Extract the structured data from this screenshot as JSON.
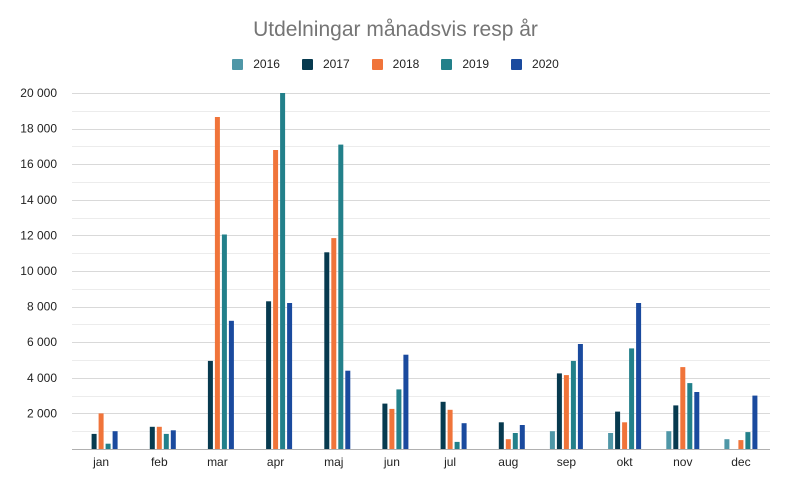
{
  "chart_data": {
    "type": "bar",
    "title": "Utdelningar månadsvis resp år",
    "xlabel": "",
    "ylabel": "",
    "ylim": [
      0,
      20000
    ],
    "yticks": [
      2000,
      4000,
      6000,
      8000,
      10000,
      12000,
      14000,
      16000,
      18000,
      20000
    ],
    "ytick_labels": [
      "2 000",
      "4 000",
      "6 000",
      "8 000",
      "10 000",
      "12 000",
      "14 000",
      "16 000",
      "18 000",
      "20 000"
    ],
    "grid": true,
    "legend_position": "top",
    "categories": [
      "jan",
      "feb",
      "mar",
      "apr",
      "maj",
      "jun",
      "jul",
      "aug",
      "sep",
      "okt",
      "nov",
      "dec"
    ],
    "series": [
      {
        "name": "2016",
        "color": "#4f97a7",
        "values": [
          0,
          0,
          0,
          0,
          0,
          0,
          0,
          0,
          1000,
          900,
          1000,
          550
        ]
      },
      {
        "name": "2017",
        "color": "#073a4f",
        "values": [
          850,
          1250,
          4950,
          8300,
          11050,
          2550,
          2650,
          1500,
          4250,
          2100,
          2450,
          0
        ]
      },
      {
        "name": "2018",
        "color": "#f0743a",
        "values": [
          2000,
          1250,
          18650,
          16800,
          11850,
          2250,
          2200,
          550,
          4150,
          1500,
          4600,
          500
        ]
      },
      {
        "name": "2019",
        "color": "#22808a",
        "values": [
          300,
          850,
          12050,
          20000,
          17100,
          3350,
          400,
          900,
          4950,
          5650,
          3700,
          950
        ]
      },
      {
        "name": "2020",
        "color": "#1a4a9e",
        "values": [
          1000,
          1050,
          7200,
          8200,
          4400,
          5300,
          1450,
          1350,
          5900,
          8200,
          3200,
          3000
        ]
      }
    ]
  }
}
